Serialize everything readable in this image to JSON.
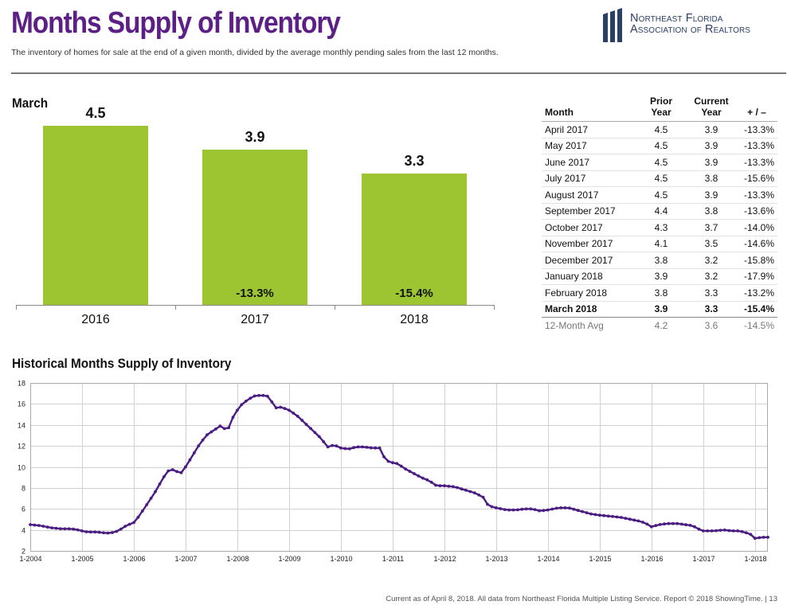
{
  "header": {
    "title": "Months Supply of Inventory",
    "subtitle": "The inventory of homes for sale at the end of a given month, divided by the average monthly pending sales from the last 12 months."
  },
  "logo": {
    "line1": "Northeast Florida",
    "line2": "Association of Realtors"
  },
  "colors": {
    "title": "#5b1f86",
    "bar": "#9dc431",
    "line": "#4b1c82",
    "rule": "#777777",
    "grid": "#d0d0d0",
    "logo": "#2a3f66"
  },
  "bar_section": {
    "label": "March"
  },
  "table": {
    "headers": [
      "Month",
      "Prior Year",
      "Current Year",
      "+ / –"
    ],
    "rows": [
      [
        "April 2017",
        "4.5",
        "3.9",
        "-13.3%"
      ],
      [
        "May 2017",
        "4.5",
        "3.9",
        "-13.3%"
      ],
      [
        "June 2017",
        "4.5",
        "3.9",
        "-13.3%"
      ],
      [
        "July 2017",
        "4.5",
        "3.8",
        "-15.6%"
      ],
      [
        "August 2017",
        "4.5",
        "3.9",
        "-13.3%"
      ],
      [
        "September 2017",
        "4.4",
        "3.8",
        "-13.6%"
      ],
      [
        "October 2017",
        "4.3",
        "3.7",
        "-14.0%"
      ],
      [
        "November 2017",
        "4.1",
        "3.5",
        "-14.6%"
      ],
      [
        "December 2017",
        "3.8",
        "3.2",
        "-15.8%"
      ],
      [
        "January 2018",
        "3.9",
        "3.2",
        "-17.9%"
      ],
      [
        "February 2018",
        "3.8",
        "3.3",
        "-13.2%"
      ],
      [
        "March 2018",
        "3.9",
        "3.3",
        "-15.4%"
      ]
    ],
    "avg": [
      "12-Month Avg",
      "4.2",
      "3.6",
      "-14.5%"
    ]
  },
  "history_section": {
    "label": "Historical Months Supply of Inventory"
  },
  "footer": {
    "text": "Current as of April 8, 2018. All data from Northeast Florida Multiple Listing Service. Report © 2018 ShowingTime.  |  13"
  },
  "chart_data": [
    {
      "type": "bar",
      "title": "March",
      "categories": [
        "2016",
        "2017",
        "2018"
      ],
      "values": [
        4.5,
        3.9,
        3.3
      ],
      "value_labels": [
        "4.5",
        "3.9",
        "3.3"
      ],
      "change_labels": [
        "",
        "-13.3%",
        "-15.4%"
      ],
      "ylim": [
        0,
        5.1
      ]
    },
    {
      "type": "line",
      "title": "Historical Months Supply of Inventory",
      "x_ticks": [
        "1-2004",
        "1-2005",
        "1-2006",
        "1-2007",
        "1-2008",
        "1-2009",
        "1-2010",
        "1-2011",
        "1-2012",
        "1-2013",
        "1-2014",
        "1-2015",
        "1-2016",
        "1-2017",
        "1-2018"
      ],
      "y_ticks": [
        2,
        4,
        6,
        8,
        10,
        12,
        14,
        16,
        18
      ],
      "ylim": [
        2,
        18
      ],
      "x_range": [
        2004.0,
        2018.25
      ],
      "anchors": [
        [
          2004.0,
          4.5
        ],
        [
          2004.2,
          4.4
        ],
        [
          2004.4,
          4.2
        ],
        [
          2004.6,
          4.1
        ],
        [
          2004.8,
          4.1
        ],
        [
          2004.92,
          4.0
        ],
        [
          2005.0,
          3.9
        ],
        [
          2005.1,
          3.8
        ],
        [
          2005.3,
          3.8
        ],
        [
          2005.45,
          3.7
        ],
        [
          2005.55,
          3.7
        ],
        [
          2005.7,
          3.9
        ],
        [
          2005.85,
          4.4
        ],
        [
          2006.0,
          4.7
        ],
        [
          2006.1,
          5.3
        ],
        [
          2006.25,
          6.4
        ],
        [
          2006.4,
          7.5
        ],
        [
          2006.55,
          8.8
        ],
        [
          2006.65,
          9.6
        ],
        [
          2006.8,
          9.8
        ],
        [
          2006.88,
          9.2
        ],
        [
          2007.0,
          10.0
        ],
        [
          2007.1,
          10.8
        ],
        [
          2007.25,
          12.0
        ],
        [
          2007.4,
          13.0
        ],
        [
          2007.55,
          13.5
        ],
        [
          2007.7,
          14.0
        ],
        [
          2007.8,
          13.3
        ],
        [
          2007.9,
          14.6
        ],
        [
          2008.05,
          15.8
        ],
        [
          2008.2,
          16.4
        ],
        [
          2008.35,
          16.8
        ],
        [
          2008.5,
          16.8
        ],
        [
          2008.62,
          16.7
        ],
        [
          2008.72,
          15.6
        ],
        [
          2008.85,
          15.7
        ],
        [
          2009.0,
          15.4
        ],
        [
          2009.15,
          14.9
        ],
        [
          2009.3,
          14.2
        ],
        [
          2009.45,
          13.5
        ],
        [
          2009.6,
          12.8
        ],
        [
          2009.75,
          11.9
        ],
        [
          2009.87,
          12.1
        ],
        [
          2010.0,
          11.8
        ],
        [
          2010.15,
          11.7
        ],
        [
          2010.3,
          11.9
        ],
        [
          2010.45,
          11.9
        ],
        [
          2010.6,
          11.8
        ],
        [
          2010.75,
          11.8
        ],
        [
          2010.87,
          10.6
        ],
        [
          2011.0,
          10.4
        ],
        [
          2011.1,
          10.3
        ],
        [
          2011.25,
          9.8
        ],
        [
          2011.4,
          9.4
        ],
        [
          2011.55,
          9.0
        ],
        [
          2011.7,
          8.7
        ],
        [
          2011.85,
          8.2
        ],
        [
          2012.0,
          8.2
        ],
        [
          2012.2,
          8.1
        ],
        [
          2012.4,
          7.8
        ],
        [
          2012.6,
          7.5
        ],
        [
          2012.75,
          7.1
        ],
        [
          2012.85,
          6.3
        ],
        [
          2013.0,
          6.1
        ],
        [
          2013.2,
          5.9
        ],
        [
          2013.4,
          5.9
        ],
        [
          2013.55,
          6.0
        ],
        [
          2013.7,
          6.0
        ],
        [
          2013.85,
          5.8
        ],
        [
          2014.0,
          5.9
        ],
        [
          2014.2,
          6.1
        ],
        [
          2014.4,
          6.1
        ],
        [
          2014.55,
          5.9
        ],
        [
          2014.7,
          5.7
        ],
        [
          2014.85,
          5.5
        ],
        [
          2015.0,
          5.4
        ],
        [
          2015.2,
          5.3
        ],
        [
          2015.4,
          5.2
        ],
        [
          2015.6,
          5.0
        ],
        [
          2015.8,
          4.8
        ],
        [
          2015.9,
          4.6
        ],
        [
          2016.0,
          4.3
        ],
        [
          2016.15,
          4.5
        ],
        [
          2016.3,
          4.6
        ],
        [
          2016.5,
          4.6
        ],
        [
          2016.65,
          4.5
        ],
        [
          2016.8,
          4.4
        ],
        [
          2016.9,
          4.1
        ],
        [
          2017.0,
          3.9
        ],
        [
          2017.2,
          3.9
        ],
        [
          2017.4,
          4.0
        ],
        [
          2017.55,
          3.9
        ],
        [
          2017.7,
          3.9
        ],
        [
          2017.85,
          3.7
        ],
        [
          2017.95,
          3.5
        ],
        [
          2018.0,
          3.2
        ],
        [
          2018.15,
          3.3
        ],
        [
          2018.25,
          3.3
        ]
      ]
    }
  ]
}
